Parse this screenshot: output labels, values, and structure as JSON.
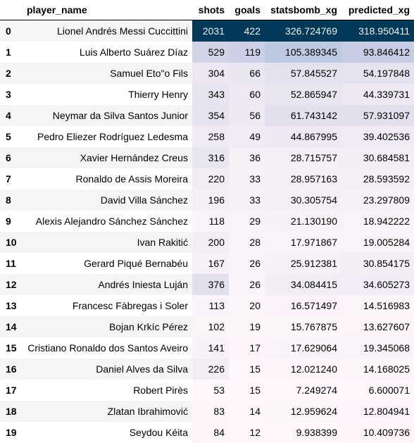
{
  "table": {
    "columns": [
      "",
      "player_name",
      "shots",
      "goals",
      "statsbomb_xg",
      "predicted_xg"
    ],
    "rows": [
      {
        "index": "0",
        "player_name": "Lionel Andrés Messi Cuccittini",
        "shots": "2031",
        "goals": "422",
        "statsbomb_xg": "326.724769",
        "predicted_xg": "318.950411"
      },
      {
        "index": "1",
        "player_name": "Luis Alberto Suárez Díaz",
        "shots": "529",
        "goals": "119",
        "statsbomb_xg": "105.389345",
        "predicted_xg": "93.846412"
      },
      {
        "index": "2",
        "player_name": "Samuel Eto\"o Fils",
        "shots": "304",
        "goals": "66",
        "statsbomb_xg": "57.845527",
        "predicted_xg": "54.197848"
      },
      {
        "index": "3",
        "player_name": "Thierry Henry",
        "shots": "343",
        "goals": "60",
        "statsbomb_xg": "52.865947",
        "predicted_xg": "44.339731"
      },
      {
        "index": "4",
        "player_name": "Neymar da Silva Santos Junior",
        "shots": "354",
        "goals": "56",
        "statsbomb_xg": "61.743142",
        "predicted_xg": "57.931097"
      },
      {
        "index": "5",
        "player_name": "Pedro Eliezer Rodríguez Ledesma",
        "shots": "258",
        "goals": "49",
        "statsbomb_xg": "44.867995",
        "predicted_xg": "39.402536"
      },
      {
        "index": "6",
        "player_name": "Xavier Hernández Creus",
        "shots": "316",
        "goals": "36",
        "statsbomb_xg": "28.715757",
        "predicted_xg": "30.684581"
      },
      {
        "index": "7",
        "player_name": "Ronaldo de Assis Moreira",
        "shots": "220",
        "goals": "33",
        "statsbomb_xg": "28.957163",
        "predicted_xg": "28.593592"
      },
      {
        "index": "8",
        "player_name": "David Villa Sánchez",
        "shots": "196",
        "goals": "33",
        "statsbomb_xg": "30.305754",
        "predicted_xg": "23.297809"
      },
      {
        "index": "9",
        "player_name": "Alexis Alejandro Sánchez Sánchez",
        "shots": "118",
        "goals": "29",
        "statsbomb_xg": "21.130190",
        "predicted_xg": "18.942222"
      },
      {
        "index": "10",
        "player_name": "Ivan Rakitić",
        "shots": "200",
        "goals": "28",
        "statsbomb_xg": "17.971867",
        "predicted_xg": "19.005284"
      },
      {
        "index": "11",
        "player_name": "Gerard Piqué Bernabéu",
        "shots": "167",
        "goals": "26",
        "statsbomb_xg": "25.912381",
        "predicted_xg": "30.854175"
      },
      {
        "index": "12",
        "player_name": "Andrés Iniesta Luján",
        "shots": "376",
        "goals": "26",
        "statsbomb_xg": "34.084415",
        "predicted_xg": "34.605273"
      },
      {
        "index": "13",
        "player_name": "Francesc Fàbregas i Soler",
        "shots": "113",
        "goals": "20",
        "statsbomb_xg": "16.571497",
        "predicted_xg": "14.516983"
      },
      {
        "index": "14",
        "player_name": "Bojan Krkíc Pérez",
        "shots": "102",
        "goals": "19",
        "statsbomb_xg": "15.767875",
        "predicted_xg": "13.627607"
      },
      {
        "index": "15",
        "player_name": "Cristiano Ronaldo dos Santos Aveiro",
        "shots": "141",
        "goals": "17",
        "statsbomb_xg": "17.629064",
        "predicted_xg": "19.345068"
      },
      {
        "index": "16",
        "player_name": "Daniel Alves da Silva",
        "shots": "226",
        "goals": "15",
        "statsbomb_xg": "12.021240",
        "predicted_xg": "14.168025"
      },
      {
        "index": "17",
        "player_name": "Robert Pirès",
        "shots": "53",
        "goals": "15",
        "statsbomb_xg": "7.249274",
        "predicted_xg": "6.600071"
      },
      {
        "index": "18",
        "player_name": "Zlatan Ibrahimović",
        "shots": "83",
        "goals": "14",
        "statsbomb_xg": "12.959624",
        "predicted_xg": "12.804941"
      },
      {
        "index": "19",
        "player_name": "Seydou Kéita",
        "shots": "84",
        "goals": "12",
        "statsbomb_xg": "9.938399",
        "predicted_xg": "10.409736"
      }
    ]
  },
  "gradient": {
    "shots": {
      "low": "#fff7fb",
      "high": "#023858"
    },
    "goals": {
      "low": "#fff7fb",
      "high": "#023858"
    },
    "statsbomb_xg": {
      "low": "#fff7fb",
      "high": "#023858"
    },
    "predicted_xg": {
      "low": "#fff7fb",
      "high": "#023858"
    }
  }
}
